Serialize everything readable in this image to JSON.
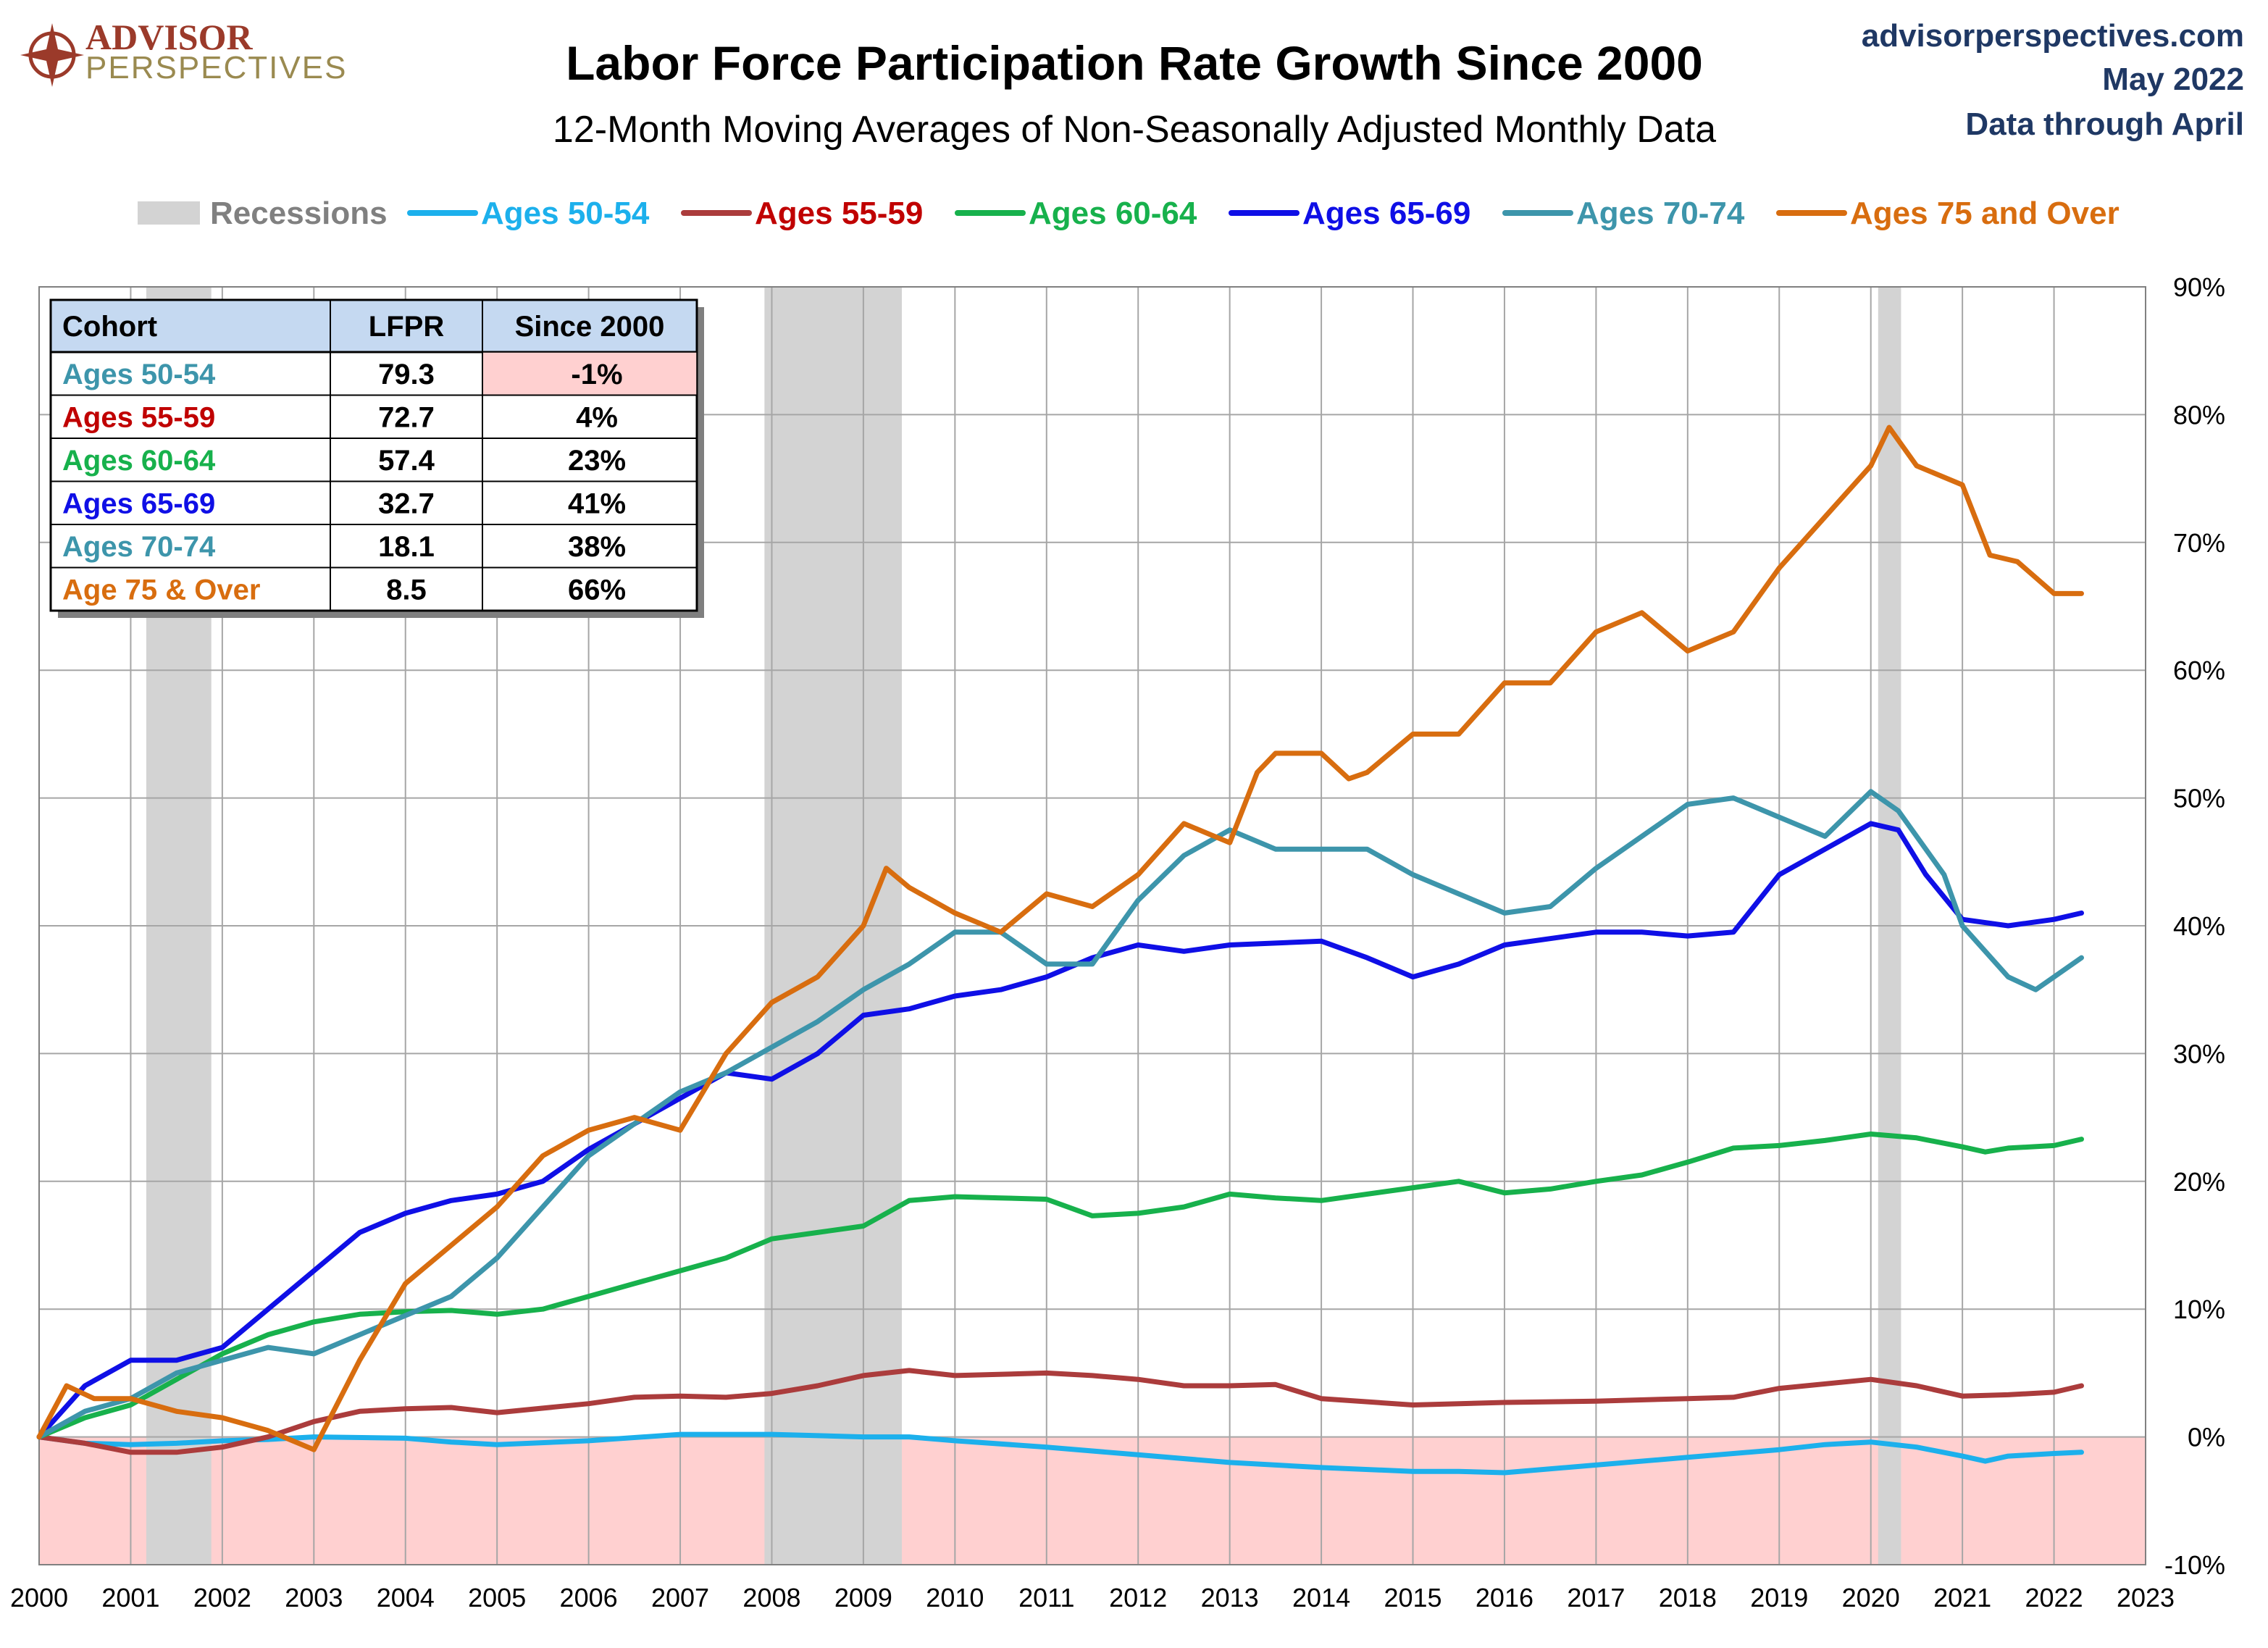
{
  "header": {
    "brand_line1": "ADVISOR",
    "brand_line2": "PERSPECTIVES",
    "site": "advisorperspectives.com",
    "date": "May 2022",
    "data_through": "Data through April"
  },
  "colors": {
    "recession": "#d3d3d3",
    "negative_zone": "#ffd0d0",
    "grid": "#a6a6a6",
    "brand": "#9b3a2a",
    "blue_text": "#1f3864"
  },
  "chart_data": {
    "type": "line",
    "title": "Labor Force Participation Rate Growth Since 2000",
    "subtitle": "12-Month Moving Averages of Non-Seasonally Adjusted Monthly Data",
    "xlabel": "",
    "ylabel": "",
    "xlim": [
      2000,
      2023
    ],
    "ylim": [
      -10,
      90
    ],
    "x_ticks": [
      2000,
      2001,
      2002,
      2003,
      2004,
      2005,
      2006,
      2007,
      2008,
      2009,
      2010,
      2011,
      2012,
      2013,
      2014,
      2015,
      2016,
      2017,
      2018,
      2019,
      2020,
      2021,
      2022,
      2023
    ],
    "y_ticks": [
      -10,
      0,
      10,
      20,
      30,
      40,
      50,
      60,
      70,
      80,
      90
    ],
    "y_tick_labels": [
      "-10%",
      "0%",
      "10%",
      "20%",
      "30%",
      "40%",
      "50%",
      "60%",
      "70%",
      "80%",
      "90%"
    ],
    "y_axis_position": "right",
    "grid": true,
    "legend_position": "top",
    "recessions": [
      {
        "start": 2001.17,
        "end": 2001.88
      },
      {
        "start": 2007.92,
        "end": 2009.42
      },
      {
        "start": 2020.08,
        "end": 2020.33
      }
    ],
    "recession_label": "Recessions",
    "series": [
      {
        "name": "Ages 50-54",
        "color": "#1cb0ec",
        "points": [
          [
            2000,
            0
          ],
          [
            2000.5,
            -0.5
          ],
          [
            2001,
            -0.6
          ],
          [
            2001.5,
            -0.5
          ],
          [
            2002,
            -0.3
          ],
          [
            2002.5,
            -0.2
          ],
          [
            2003,
            0
          ],
          [
            2004,
            -0.1
          ],
          [
            2004.5,
            -0.4
          ],
          [
            2005,
            -0.6
          ],
          [
            2006,
            -0.3
          ],
          [
            2007,
            0.2
          ],
          [
            2008,
            0.2
          ],
          [
            2009,
            0
          ],
          [
            2009.5,
            0
          ],
          [
            2010,
            -0.3
          ],
          [
            2011,
            -0.8
          ],
          [
            2012,
            -1.4
          ],
          [
            2013,
            -2
          ],
          [
            2014,
            -2.4
          ],
          [
            2015,
            -2.7
          ],
          [
            2015.5,
            -2.7
          ],
          [
            2016,
            -2.8
          ],
          [
            2017,
            -2.2
          ],
          [
            2018,
            -1.6
          ],
          [
            2019,
            -1
          ],
          [
            2019.5,
            -0.6
          ],
          [
            2020,
            -0.4
          ],
          [
            2020.5,
            -0.8
          ],
          [
            2021,
            -1.5
          ],
          [
            2021.25,
            -1.9
          ],
          [
            2021.5,
            -1.5
          ],
          [
            2022,
            -1.3
          ],
          [
            2022.3,
            -1.2
          ]
        ]
      },
      {
        "name": "Ages 55-59",
        "color": "#ab3c3c",
        "points": [
          [
            2000,
            0
          ],
          [
            2000.5,
            -0.5
          ],
          [
            2001,
            -1.2
          ],
          [
            2001.5,
            -1.2
          ],
          [
            2002,
            -0.8
          ],
          [
            2002.5,
            0
          ],
          [
            2003,
            1.2
          ],
          [
            2003.5,
            2
          ],
          [
            2004,
            2.2
          ],
          [
            2004.5,
            2.3
          ],
          [
            2005,
            1.9
          ],
          [
            2006,
            2.6
          ],
          [
            2006.5,
            3.1
          ],
          [
            2007,
            3.2
          ],
          [
            2007.5,
            3.1
          ],
          [
            2008,
            3.4
          ],
          [
            2008.5,
            4
          ],
          [
            2009,
            4.8
          ],
          [
            2009.5,
            5.2
          ],
          [
            2010,
            4.8
          ],
          [
            2011,
            5
          ],
          [
            2011.5,
            4.8
          ],
          [
            2012,
            4.5
          ],
          [
            2012.5,
            4
          ],
          [
            2013,
            4
          ],
          [
            2013.5,
            4.1
          ],
          [
            2014,
            3
          ],
          [
            2015,
            2.5
          ],
          [
            2016,
            2.7
          ],
          [
            2017,
            2.8
          ],
          [
            2018,
            3
          ],
          [
            2018.5,
            3.1
          ],
          [
            2019,
            3.8
          ],
          [
            2020,
            4.5
          ],
          [
            2020.5,
            4
          ],
          [
            2021,
            3.2
          ],
          [
            2021.5,
            3.3
          ],
          [
            2022,
            3.5
          ],
          [
            2022.3,
            4
          ]
        ]
      },
      {
        "name": "Ages 60-64",
        "color": "#17b14c",
        "points": [
          [
            2000,
            0
          ],
          [
            2000.5,
            1.5
          ],
          [
            2001,
            2.5
          ],
          [
            2001.5,
            4.5
          ],
          [
            2002,
            6.5
          ],
          [
            2002.5,
            8
          ],
          [
            2003,
            9
          ],
          [
            2003.5,
            9.6
          ],
          [
            2004,
            9.8
          ],
          [
            2004.5,
            9.9
          ],
          [
            2005,
            9.6
          ],
          [
            2005.5,
            10
          ],
          [
            2006,
            11
          ],
          [
            2006.5,
            12
          ],
          [
            2007,
            13
          ],
          [
            2007.5,
            14
          ],
          [
            2008,
            15.5
          ],
          [
            2008.5,
            16
          ],
          [
            2009,
            16.5
          ],
          [
            2009.5,
            18.5
          ],
          [
            2010,
            18.8
          ],
          [
            2010.5,
            18.7
          ],
          [
            2011,
            18.6
          ],
          [
            2011.5,
            17.3
          ],
          [
            2012,
            17.5
          ],
          [
            2012.5,
            18
          ],
          [
            2013,
            19
          ],
          [
            2013.5,
            18.7
          ],
          [
            2014,
            18.5
          ],
          [
            2015,
            19.5
          ],
          [
            2015.5,
            20
          ],
          [
            2016,
            19.1
          ],
          [
            2016.5,
            19.4
          ],
          [
            2017,
            20
          ],
          [
            2017.5,
            20.5
          ],
          [
            2018,
            21.5
          ],
          [
            2018.5,
            22.6
          ],
          [
            2019,
            22.8
          ],
          [
            2019.5,
            23.2
          ],
          [
            2020,
            23.7
          ],
          [
            2020.5,
            23.4
          ],
          [
            2021,
            22.7
          ],
          [
            2021.25,
            22.3
          ],
          [
            2021.5,
            22.6
          ],
          [
            2022,
            22.8
          ],
          [
            2022.3,
            23.3
          ]
        ]
      },
      {
        "name": "Ages 65-69",
        "color": "#0f0fe6",
        "points": [
          [
            2000,
            0
          ],
          [
            2000.5,
            4
          ],
          [
            2001,
            6
          ],
          [
            2001.5,
            6
          ],
          [
            2002,
            7
          ],
          [
            2002.5,
            10
          ],
          [
            2003,
            13
          ],
          [
            2003.5,
            16
          ],
          [
            2004,
            17.5
          ],
          [
            2004.5,
            18.5
          ],
          [
            2005,
            19
          ],
          [
            2005.5,
            20
          ],
          [
            2006,
            22.5
          ],
          [
            2006.5,
            24.5
          ],
          [
            2007,
            26.5
          ],
          [
            2007.5,
            28.5
          ],
          [
            2008,
            28
          ],
          [
            2008.5,
            30
          ],
          [
            2009,
            33
          ],
          [
            2009.5,
            33.5
          ],
          [
            2010,
            34.5
          ],
          [
            2010.5,
            35
          ],
          [
            2011,
            36
          ],
          [
            2011.5,
            37.5
          ],
          [
            2012,
            38.5
          ],
          [
            2012.5,
            38
          ],
          [
            2013,
            38.5
          ],
          [
            2014,
            38.8
          ],
          [
            2014.5,
            37.5
          ],
          [
            2015,
            36
          ],
          [
            2015.5,
            37
          ],
          [
            2016,
            38.5
          ],
          [
            2017,
            39.5
          ],
          [
            2017.5,
            39.5
          ],
          [
            2018,
            39.2
          ],
          [
            2018.5,
            39.5
          ],
          [
            2019,
            44
          ],
          [
            2019.5,
            46
          ],
          [
            2020,
            48
          ],
          [
            2020.3,
            47.5
          ],
          [
            2020.6,
            44
          ],
          [
            2021,
            40.5
          ],
          [
            2021.5,
            40
          ],
          [
            2022,
            40.5
          ],
          [
            2022.3,
            41
          ]
        ]
      },
      {
        "name": "Ages 70-74",
        "color": "#3d95ab",
        "points": [
          [
            2000,
            0
          ],
          [
            2000.5,
            2
          ],
          [
            2001,
            3
          ],
          [
            2001.5,
            5
          ],
          [
            2002,
            6
          ],
          [
            2002.5,
            7
          ],
          [
            2003,
            6.5
          ],
          [
            2003.5,
            8
          ],
          [
            2004,
            9.5
          ],
          [
            2004.5,
            11
          ],
          [
            2005,
            14
          ],
          [
            2005.5,
            18
          ],
          [
            2006,
            22
          ],
          [
            2006.5,
            24.5
          ],
          [
            2007,
            27
          ],
          [
            2007.5,
            28.5
          ],
          [
            2008,
            30.5
          ],
          [
            2008.5,
            32.5
          ],
          [
            2009,
            35
          ],
          [
            2009.5,
            37
          ],
          [
            2010,
            39.5
          ],
          [
            2010.5,
            39.5
          ],
          [
            2011,
            37
          ],
          [
            2011.5,
            37
          ],
          [
            2012,
            42
          ],
          [
            2012.5,
            45.5
          ],
          [
            2013,
            47.5
          ],
          [
            2013.5,
            46
          ],
          [
            2014,
            46
          ],
          [
            2014.5,
            46
          ],
          [
            2015,
            44
          ],
          [
            2015.5,
            42.5
          ],
          [
            2016,
            41
          ],
          [
            2016.5,
            41.5
          ],
          [
            2017,
            44.5
          ],
          [
            2017.5,
            47
          ],
          [
            2018,
            49.5
          ],
          [
            2018.5,
            50
          ],
          [
            2019,
            48.5
          ],
          [
            2019.5,
            47
          ],
          [
            2020,
            50.5
          ],
          [
            2020.3,
            49
          ],
          [
            2020.8,
            44
          ],
          [
            2021,
            40
          ],
          [
            2021.5,
            36
          ],
          [
            2021.8,
            35
          ],
          [
            2022,
            36
          ],
          [
            2022.3,
            37.5
          ]
        ]
      },
      {
        "name": "Ages 75 and Over",
        "color": "#d86d0f",
        "points": [
          [
            2000,
            0
          ],
          [
            2000.3,
            4
          ],
          [
            2000.6,
            3
          ],
          [
            2001,
            3
          ],
          [
            2001.5,
            2
          ],
          [
            2002,
            1.5
          ],
          [
            2002.5,
            0.5
          ],
          [
            2003,
            -1
          ],
          [
            2003.5,
            6
          ],
          [
            2004,
            12
          ],
          [
            2004.5,
            15
          ],
          [
            2005,
            18
          ],
          [
            2005.5,
            22
          ],
          [
            2006,
            24
          ],
          [
            2006.5,
            25
          ],
          [
            2007,
            24
          ],
          [
            2007.5,
            30
          ],
          [
            2008,
            34
          ],
          [
            2008.5,
            36
          ],
          [
            2009,
            40
          ],
          [
            2009.25,
            44.5
          ],
          [
            2009.5,
            43
          ],
          [
            2010,
            41
          ],
          [
            2010.5,
            39.5
          ],
          [
            2011,
            42.5
          ],
          [
            2011.5,
            41.5
          ],
          [
            2012,
            44
          ],
          [
            2012.5,
            48
          ],
          [
            2013,
            46.5
          ],
          [
            2013.3,
            52
          ],
          [
            2013.5,
            53.5
          ],
          [
            2014,
            53.5
          ],
          [
            2014.3,
            51.5
          ],
          [
            2014.5,
            52
          ],
          [
            2015,
            55
          ],
          [
            2015.5,
            55
          ],
          [
            2016,
            59
          ],
          [
            2016.5,
            59
          ],
          [
            2017,
            63
          ],
          [
            2017.5,
            64.5
          ],
          [
            2018,
            61.5
          ],
          [
            2018.5,
            63
          ],
          [
            2019,
            68
          ],
          [
            2019.5,
            72
          ],
          [
            2020,
            76
          ],
          [
            2020.2,
            79
          ],
          [
            2020.5,
            76
          ],
          [
            2021,
            74.5
          ],
          [
            2021.3,
            69
          ],
          [
            2021.6,
            68.5
          ],
          [
            2022,
            66
          ],
          [
            2022.3,
            66
          ]
        ]
      }
    ],
    "table": {
      "headers": [
        "Cohort",
        "LFPR",
        "Since 2000"
      ],
      "rows": [
        {
          "cohort": "Ages 50-54",
          "lfpr": "79.3",
          "since": "-1%",
          "color": "#3d95ab"
        },
        {
          "cohort": "Ages 55-59",
          "lfpr": "72.7",
          "since": "4%",
          "color": "#c00000"
        },
        {
          "cohort": "Ages 60-64",
          "lfpr": "57.4",
          "since": "23%",
          "color": "#17b14c"
        },
        {
          "cohort": "Ages 65-69",
          "lfpr": "32.7",
          "since": "41%",
          "color": "#0f0fe6"
        },
        {
          "cohort": "Ages 70-74",
          "lfpr": "18.1",
          "since": "38%",
          "color": "#3d95ab"
        },
        {
          "cohort": "Age 75 & Over",
          "lfpr": "8.5",
          "since": "66%",
          "color": "#d86d0f"
        }
      ]
    }
  }
}
